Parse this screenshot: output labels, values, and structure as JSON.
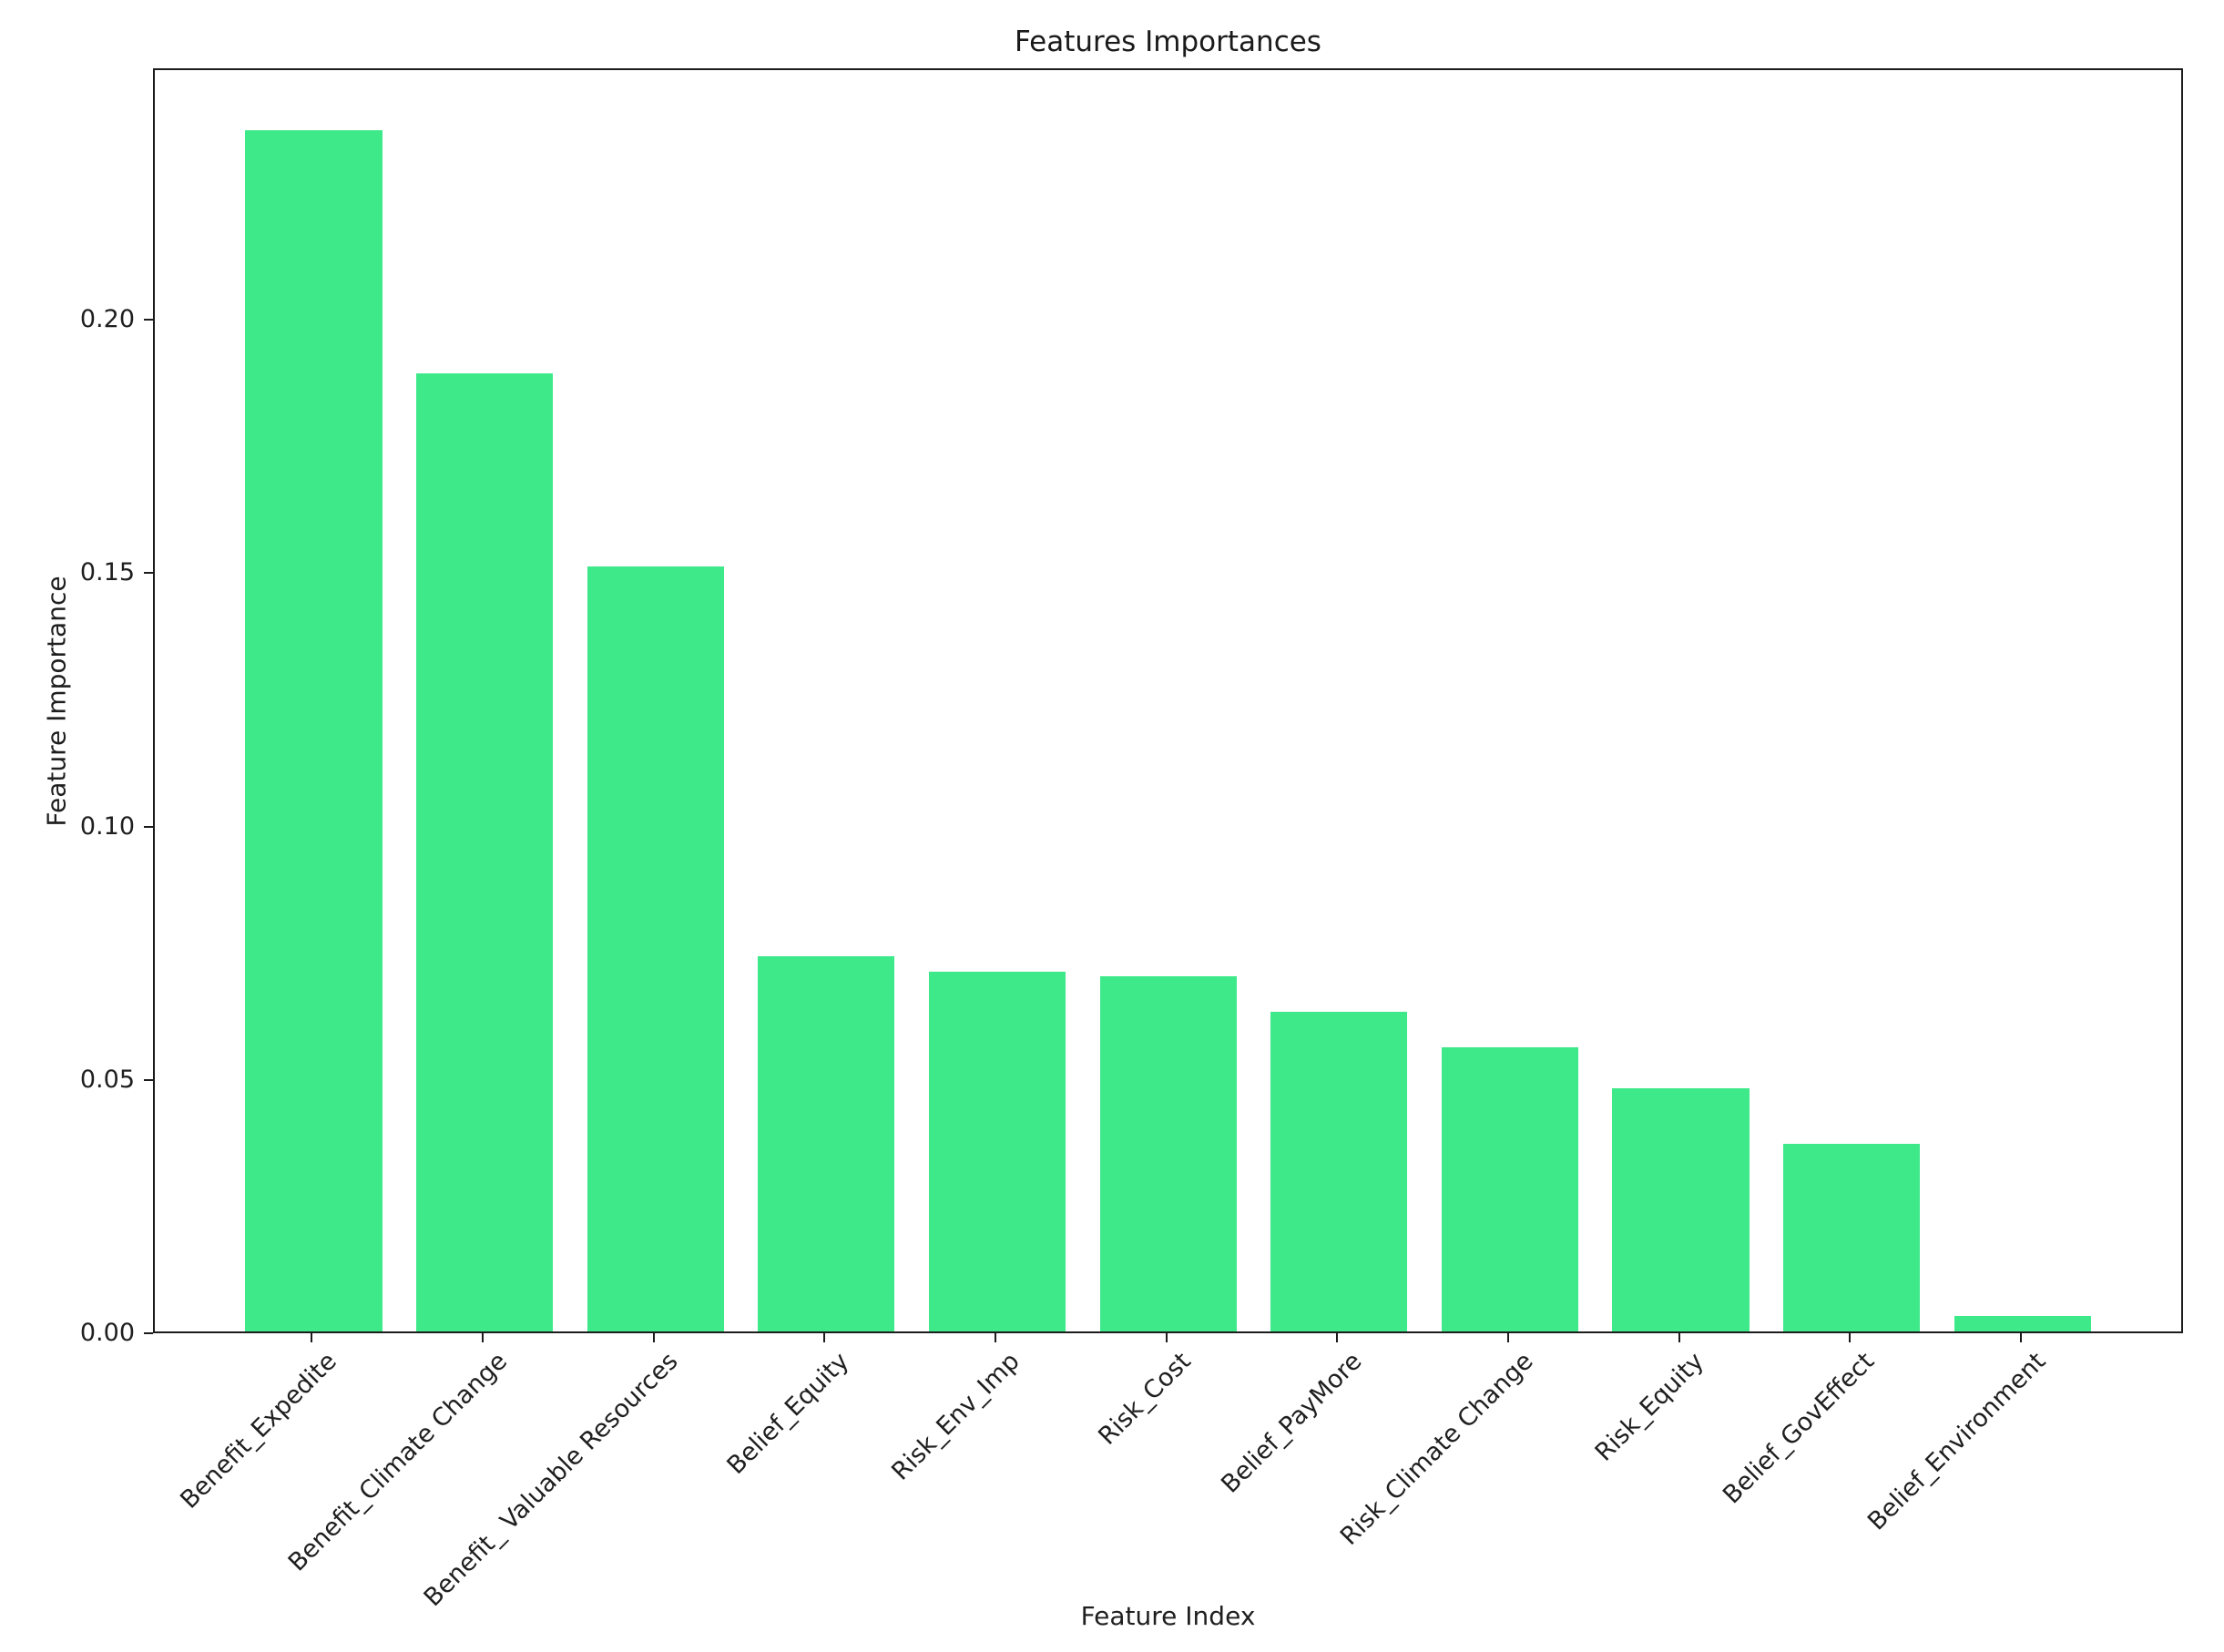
{
  "chart_data": {
    "type": "bar",
    "title": "Features Importances",
    "xlabel": "Feature Index",
    "ylabel": "Feature Importance",
    "categories": [
      "Benefit_Expedite",
      "Benefit_Climate Change",
      "Benefit_ Valuable Resources",
      "Belief_Equity",
      "Risk_Env_Imp",
      "Risk_Cost",
      "Belief_PayMore",
      "Risk_Climate Change",
      "Risk_Equity",
      "Belief_GovEffect",
      "Belief_Environment"
    ],
    "values": [
      0.237,
      0.189,
      0.151,
      0.074,
      0.071,
      0.07,
      0.063,
      0.056,
      0.048,
      0.037,
      0.003
    ],
    "ytick_labels": [
      "0.00",
      "0.05",
      "0.10",
      "0.15",
      "0.20"
    ],
    "ytick_values": [
      0.0,
      0.05,
      0.1,
      0.15,
      0.2
    ],
    "ylim": [
      0,
      0.2496
    ],
    "xlim": [
      -0.93,
      10.95
    ],
    "bar_width_fraction": 0.8,
    "xtick_label_rotation_deg": 45,
    "grid": false,
    "legend": "none",
    "colors": {
      "bar_fill": "#3ee98a",
      "axis": "#1c1c1c",
      "text": "#1f1f1f",
      "background": "#ffffff"
    }
  }
}
